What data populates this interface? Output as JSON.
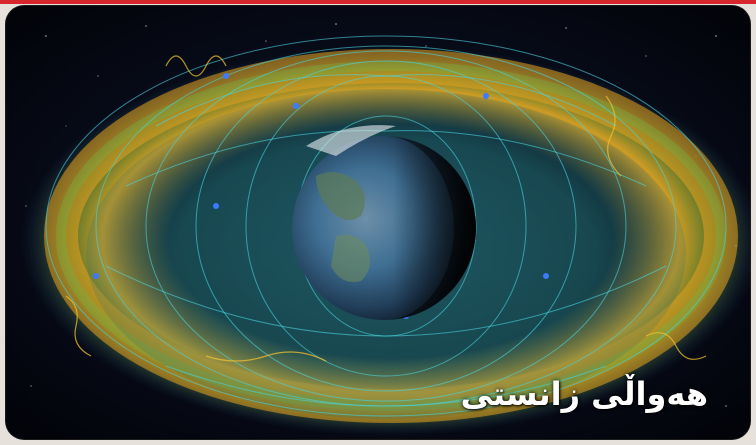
{
  "caption": {
    "text": "هەواڵی زانستی"
  },
  "image": {
    "subject": "earth-radiation-belts",
    "colors": {
      "space": "#05060d",
      "belt_outer": "#e7a21d",
      "belt_inner": "#3ea9a2",
      "field_lines": "#49d6e0",
      "earth_ocean": "#3f6f93",
      "accent_stripe": "#d7262c"
    }
  }
}
